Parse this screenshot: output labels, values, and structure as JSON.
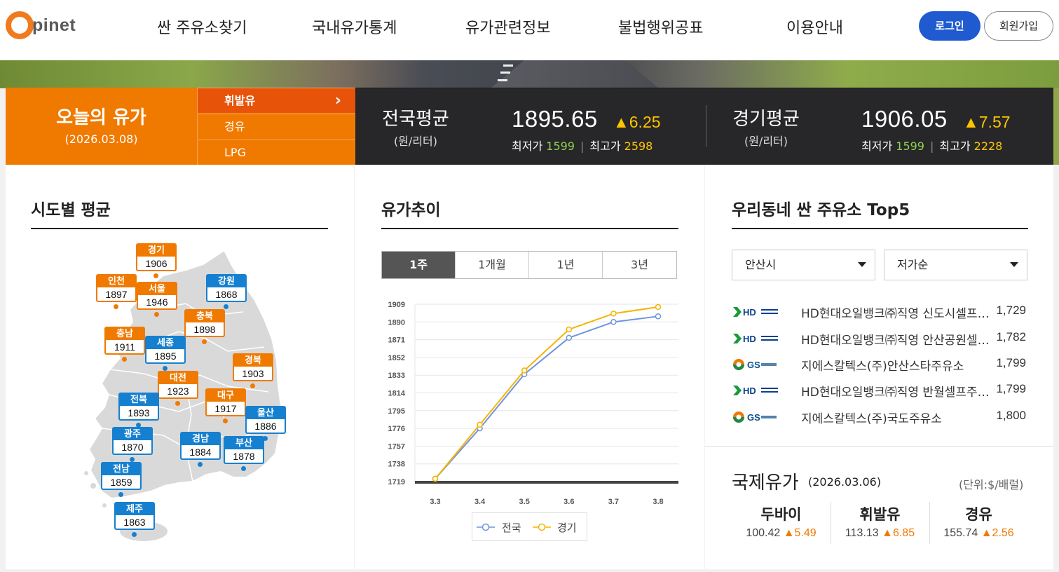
{
  "brand": {
    "logo_letter": "O",
    "logo_rest": "pinet"
  },
  "nav": {
    "items": [
      "싼 주유소찾기",
      "국내유가통계",
      "유가관련정보",
      "불법행위공표",
      "이용안내"
    ],
    "login": "로그인",
    "join": "회원가입"
  },
  "today": {
    "title": "오늘의 유가",
    "date": "(2026.03.08)",
    "fuel_tabs": [
      "휘발유",
      "경유",
      "LPG"
    ],
    "active_tab": "휘발유"
  },
  "national": {
    "label": "전국평균",
    "unit": "(원/리터)",
    "price": "1895.65",
    "change": "▲6.25",
    "min_label": "최저가",
    "min": "1599",
    "max_label": "최고가",
    "max": "2598"
  },
  "regional": {
    "label": "경기평균",
    "unit": "(원/리터)",
    "price": "1906.05",
    "change": "▲7.57",
    "min_label": "최저가",
    "min": "1599",
    "max_label": "최고가",
    "max": "2228"
  },
  "regions": {
    "title": "시도별 평균",
    "items": [
      {
        "name": "경기",
        "value": "1906",
        "color": "orange"
      },
      {
        "name": "인천",
        "value": "1897",
        "color": "orange"
      },
      {
        "name": "서울",
        "value": "1946",
        "color": "orange"
      },
      {
        "name": "강원",
        "value": "1868",
        "color": "blue"
      },
      {
        "name": "충북",
        "value": "1898",
        "color": "orange"
      },
      {
        "name": "충남",
        "value": "1911",
        "color": "orange"
      },
      {
        "name": "세종",
        "value": "1895",
        "color": "blue"
      },
      {
        "name": "경북",
        "value": "1903",
        "color": "orange"
      },
      {
        "name": "대전",
        "value": "1923",
        "color": "orange"
      },
      {
        "name": "전북",
        "value": "1893",
        "color": "blue"
      },
      {
        "name": "대구",
        "value": "1917",
        "color": "orange"
      },
      {
        "name": "울산",
        "value": "1886",
        "color": "blue"
      },
      {
        "name": "광주",
        "value": "1870",
        "color": "blue"
      },
      {
        "name": "경남",
        "value": "1884",
        "color": "blue"
      },
      {
        "name": "부산",
        "value": "1878",
        "color": "blue"
      },
      {
        "name": "전남",
        "value": "1859",
        "color": "blue"
      },
      {
        "name": "제주",
        "value": "1863",
        "color": "blue"
      }
    ]
  },
  "trend": {
    "title": "유가추이",
    "periods": [
      "1주",
      "1개월",
      "1년",
      "3년"
    ],
    "active_period": "1주",
    "legend": [
      "전국",
      "경기"
    ]
  },
  "chart_data": {
    "type": "line",
    "x": [
      "3.3",
      "3.4",
      "3.5",
      "3.6",
      "3.7",
      "3.8"
    ],
    "series": [
      {
        "name": "전국",
        "values": [
          1722,
          1776,
          1834,
          1873,
          1890,
          1896
        ],
        "color": "#6f94e0"
      },
      {
        "name": "경기",
        "values": [
          1722,
          1780,
          1838,
          1882,
          1899,
          1906
        ],
        "color": "#f5b400"
      }
    ],
    "yticks": [
      1719,
      1738,
      1757,
      1776,
      1795,
      1814,
      1833,
      1852,
      1871,
      1890,
      1909
    ],
    "ylim": [
      1719,
      1909
    ],
    "grid": true
  },
  "top5": {
    "title": "우리동네 싼 주유소 Top5",
    "city": "안산시",
    "sort": "저가순",
    "stations": [
      {
        "brand": "HD",
        "name": "HD현대오일뱅크㈜직영 신도시셀프주유소",
        "price": "1,729"
      },
      {
        "brand": "HD",
        "name": "HD현대오일뱅크㈜직영 안산공원셀프주유소",
        "price": "1,782"
      },
      {
        "brand": "GS",
        "name": "지에스칼텍스(주)안산스타주유소",
        "price": "1,799"
      },
      {
        "brand": "HD",
        "name": "HD현대오일뱅크㈜직영 반월셀프주유소",
        "price": "1,799"
      },
      {
        "brand": "GS",
        "name": "지에스칼텍스(주)국도주유소",
        "price": "1,800"
      }
    ]
  },
  "intl": {
    "title": "국제유가",
    "date": "(2026.03.06)",
    "unit": "(단위:$/배럴)",
    "items": [
      {
        "name": "두바이",
        "value": "100.42",
        "change": "▲5.49"
      },
      {
        "name": "휘발유",
        "value": "113.13",
        "change": "▲6.85"
      },
      {
        "name": "경유",
        "value": "155.74",
        "change": "▲2.56"
      }
    ]
  },
  "colors": {
    "orange": "#f07a00",
    "blue": "#1680d0",
    "login": "#1f5ad0"
  }
}
